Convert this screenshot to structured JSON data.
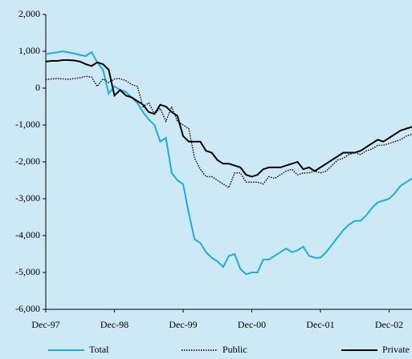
{
  "chart_data": {
    "type": "line",
    "categories": [
      "Dec-97",
      null,
      null,
      null,
      null,
      null,
      null,
      null,
      null,
      null,
      null,
      null,
      "Dec-98",
      null,
      null,
      null,
      null,
      null,
      null,
      null,
      null,
      null,
      null,
      null,
      "Dec-99",
      null,
      null,
      null,
      null,
      null,
      null,
      null,
      null,
      null,
      null,
      null,
      "Dec-00",
      null,
      null,
      null,
      null,
      null,
      null,
      null,
      null,
      null,
      null,
      null,
      "Dec-01",
      null,
      null,
      null,
      null,
      null,
      null,
      null,
      null,
      null,
      null,
      null,
      "Dec-02",
      null,
      null,
      null,
      null
    ],
    "series": [
      {
        "name": "Total",
        "color": "#1aaee0",
        "dash": "solid",
        "values": [
          920,
          950,
          970,
          1000,
          970,
          940,
          900,
          870,
          980,
          700,
          500,
          -150,
          50,
          -50,
          -100,
          -250,
          -400,
          -650,
          -850,
          -1000,
          -1450,
          -1350,
          -2300,
          -2500,
          -2600,
          -3400,
          -4100,
          -4200,
          -4450,
          -4600,
          -4700,
          -4850,
          -4550,
          -4500,
          -4900,
          -5050,
          -5000,
          -5000,
          -4650,
          -4650,
          -4550,
          -4450,
          -4350,
          -4450,
          -4400,
          -4300,
          -4550,
          -4600,
          -4600,
          -4450,
          -4250,
          -4050,
          -3850,
          -3700,
          -3600,
          -3600,
          -3450,
          -3250,
          -3100,
          -3050,
          -3000,
          -2850,
          -2650,
          -2550,
          -2450
        ]
      },
      {
        "name": "Public",
        "color": "#000000",
        "dash": "dotted",
        "values": [
          230,
          250,
          260,
          250,
          240,
          260,
          280,
          320,
          300,
          50,
          250,
          150,
          250,
          260,
          200,
          100,
          50,
          -500,
          -400,
          -700,
          -550,
          -900,
          -500,
          -900,
          -1000,
          -1100,
          -1900,
          -2200,
          -2400,
          -2400,
          -2500,
          -2600,
          -2700,
          -2300,
          -2300,
          -2550,
          -2550,
          -2550,
          -2600,
          -2400,
          -2450,
          -2350,
          -2250,
          -2200,
          -2350,
          -2300,
          -2300,
          -2250,
          -2300,
          -2250,
          -2100,
          -1950,
          -1900,
          -1800,
          -1750,
          -1800,
          -1700,
          -1650,
          -1550,
          -1550,
          -1500,
          -1450,
          -1400,
          -1300,
          -1250
        ]
      },
      {
        "name": "Private",
        "color": "#000000",
        "dash": "solid",
        "values": [
          720,
          740,
          740,
          760,
          760,
          750,
          720,
          650,
          600,
          700,
          650,
          500,
          -200,
          -50,
          -200,
          -250,
          -350,
          -450,
          -650,
          -700,
          -450,
          -500,
          -650,
          -750,
          -1300,
          -1450,
          -1450,
          -1450,
          -1700,
          -1750,
          -1950,
          -2050,
          -2050,
          -2100,
          -2150,
          -2350,
          -2400,
          -2350,
          -2200,
          -2150,
          -2150,
          -2150,
          -2100,
          -2050,
          -2000,
          -2200,
          -2150,
          -2250,
          -2150,
          -2050,
          -1950,
          -1850,
          -1750,
          -1750,
          -1750,
          -1700,
          -1600,
          -1500,
          -1400,
          -1450,
          -1350,
          -1250,
          -1150,
          -1100,
          -1050
        ]
      }
    ],
    "ylim": [
      -6000,
      2000
    ],
    "yticks": [
      {
        "value": -6000,
        "label": "-6,000"
      },
      {
        "value": -5000,
        "label": "-5,000"
      },
      {
        "value": -4000,
        "label": "-4,000"
      },
      {
        "value": -3000,
        "label": "-3,000"
      },
      {
        "value": -2000,
        "label": "-2,000"
      },
      {
        "value": -1000,
        "label": "-1,000"
      },
      0,
      {
        "value": 1000,
        "label": "1,000"
      },
      {
        "value": 2000,
        "label": "2,000"
      }
    ],
    "grid": false,
    "legend": "bottom"
  }
}
